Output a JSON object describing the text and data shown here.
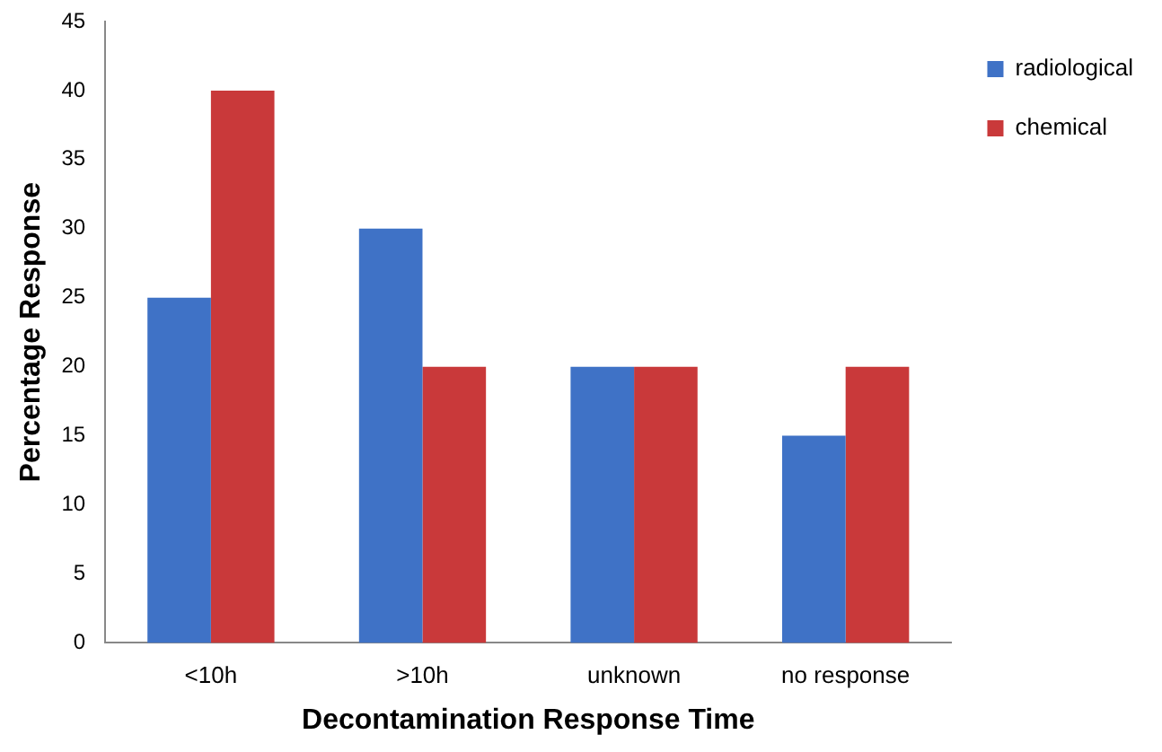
{
  "chart_data": {
    "type": "bar",
    "xlabel": "Decontamination Response Time",
    "ylabel": "Percentage Response",
    "categories": [
      "<10h",
      ">10h",
      "unknown",
      "no response"
    ],
    "series": [
      {
        "name": "radiological",
        "color": "#3f72c6",
        "values": [
          25,
          30,
          20,
          15
        ]
      },
      {
        "name": "chemical",
        "color": "#c9393a",
        "values": [
          40,
          20,
          20,
          20
        ]
      }
    ],
    "ylim": [
      0,
      45
    ],
    "yticks": [
      0,
      5,
      10,
      15,
      20,
      25,
      30,
      35,
      40,
      45
    ],
    "grid": false,
    "legend": "top right"
  }
}
